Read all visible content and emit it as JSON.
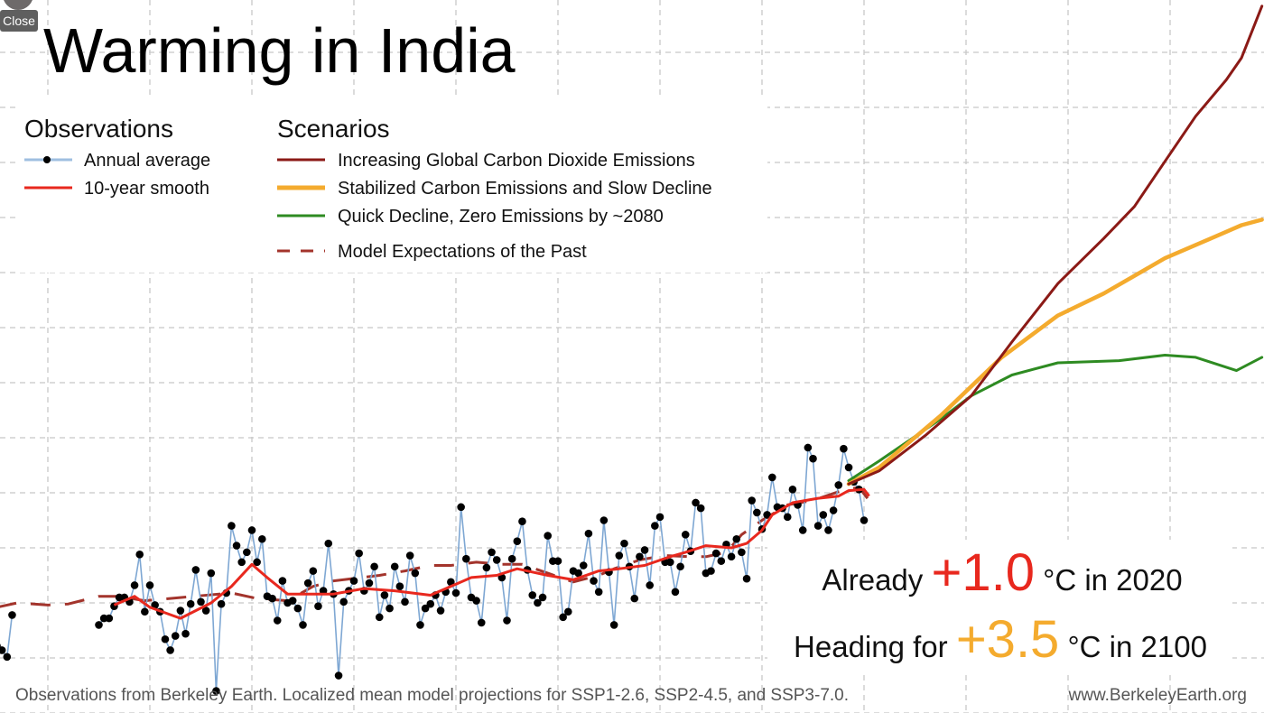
{
  "close_button": {
    "label": "Close"
  },
  "chart_data": {
    "type": "line",
    "title": "Warming in India",
    "xlabel": "",
    "ylabel": "",
    "xlim": [
      1850,
      2100
    ],
    "ylim": [
      -1.0,
      5.5
    ],
    "grid": true,
    "x_grid_step": 20,
    "y_grid_step": 0.5,
    "legend": {
      "placement": "top-left",
      "observations_title": "Observations",
      "scenarios_title": "Scenarios",
      "items": {
        "annual": "Annual average",
        "smooth": "10-year smooth",
        "ssp370": "Increasing Global Carbon Dioxide Emissions",
        "ssp245": "Stabilized Carbon Emissions and Slow Decline",
        "ssp126": "Quick Decline, Zero Emissions by ~2080",
        "past": "Model Expectations of the Past"
      }
    },
    "colors": {
      "annual_line": "#7ea7d3",
      "annual_marker": "#000000",
      "smooth": "#e8281e",
      "ssp370": "#8b1a16",
      "ssp245": "#f4ab2e",
      "ssp126": "#2e8b22",
      "past": "#a3342c",
      "annotation_now": "#e8281e",
      "annotation_future": "#f4ab2e"
    },
    "series": [
      {
        "id": "annual",
        "name": "Annual average",
        "segments": [
          {
            "x": [
              1850,
              1851,
              1852,
              1853
            ],
            "y": [
              -0.39,
              -0.43,
              -0.49,
              -0.11
            ]
          },
          {
            "x": [
              1870,
              1871,
              1872,
              1873,
              1874,
              1875,
              1876,
              1877,
              1878,
              1879,
              1880,
              1881,
              1882,
              1883,
              1884,
              1885,
              1886,
              1887,
              1888,
              1889,
              1890,
              1891,
              1892,
              1893,
              1894,
              1895,
              1896,
              1897,
              1898,
              1899,
              1900,
              1901,
              1902,
              1903,
              1904,
              1905,
              1906,
              1907,
              1908,
              1909,
              1910,
              1911,
              1912,
              1913,
              1914,
              1915,
              1916,
              1917,
              1918,
              1919,
              1920,
              1921,
              1922,
              1923,
              1924,
              1925,
              1926,
              1927,
              1928,
              1929,
              1930,
              1931,
              1932,
              1933,
              1934,
              1935,
              1936,
              1937,
              1938,
              1939,
              1940,
              1941,
              1942,
              1943,
              1944,
              1945,
              1946,
              1947,
              1948,
              1949,
              1950,
              1951,
              1952,
              1953,
              1954,
              1955,
              1956,
              1957,
              1958,
              1959,
              1960,
              1961,
              1962,
              1963,
              1964,
              1965,
              1966,
              1967,
              1968,
              1969,
              1970,
              1971,
              1972,
              1973,
              1974,
              1975,
              1976,
              1977,
              1978,
              1979,
              1980,
              1981,
              1982,
              1983,
              1984,
              1985,
              1986,
              1987,
              1988,
              1989,
              1990,
              1991,
              1992,
              1993,
              1994,
              1995,
              1996,
              1997,
              1998,
              1999,
              2000,
              2001,
              2002,
              2003,
              2004,
              2005,
              2006,
              2007,
              2008,
              2009,
              2010,
              2011,
              2012,
              2013,
              2014,
              2015,
              2016,
              2017,
              2018,
              2019,
              2020
            ],
            "y": [
              -0.2,
              -0.14,
              -0.14,
              -0.03,
              0.05,
              0.05,
              0.01,
              0.16,
              0.44,
              -0.08,
              0.16,
              -0.02,
              -0.08,
              -0.33,
              -0.43,
              -0.3,
              -0.07,
              -0.28,
              -0.01,
              0.3,
              0.01,
              -0.07,
              0.27,
              -0.8,
              -0.01,
              0.09,
              0.7,
              0.52,
              0.37,
              0.46,
              0.66,
              0.37,
              0.58,
              0.06,
              0.04,
              -0.16,
              0.2,
              0.0,
              0.02,
              -0.05,
              -0.2,
              0.18,
              0.29,
              -0.03,
              0.11,
              0.54,
              0.08,
              -0.66,
              0.01,
              0.11,
              0.2,
              0.45,
              0.11,
              0.18,
              0.33,
              -0.13,
              0.07,
              -0.05,
              0.33,
              0.15,
              0.01,
              0.43,
              0.27,
              -0.2,
              -0.05,
              -0.01,
              0.07,
              -0.07,
              0.1,
              0.19,
              0.09,
              0.87,
              0.4,
              0.05,
              0.02,
              -0.18,
              0.32,
              0.46,
              0.39,
              0.23,
              -0.16,
              0.4,
              0.56,
              0.74,
              0.3,
              0.07,
              0.0,
              0.05,
              0.61,
              0.38,
              0.38,
              -0.13,
              -0.08,
              0.29,
              0.27,
              0.34,
              0.63,
              0.2,
              0.1,
              0.75,
              0.28,
              -0.2,
              0.43,
              0.54,
              0.33,
              0.04,
              0.42,
              0.48,
              0.16,
              0.7,
              0.78,
              0.37,
              0.37,
              0.1,
              0.33,
              0.62,
              0.47,
              0.91,
              0.86,
              0.27,
              0.29,
              0.45,
              0.38,
              0.53,
              0.42,
              0.58,
              0.46,
              0.22,
              0.93,
              0.82,
              0.67,
              0.8,
              1.14,
              0.87,
              0.86,
              0.78,
              1.03,
              0.89,
              0.66,
              1.41,
              1.31,
              0.7,
              0.8,
              0.66,
              0.84,
              1.07,
              1.4,
              1.23,
              1.1,
              1.03,
              0.75
            ]
          }
        ]
      },
      {
        "id": "smooth",
        "name": "10-year smooth",
        "x": [
          1873,
          1877,
          1880,
          1886,
          1892,
          1896,
          1900,
          1903,
          1907,
          1916,
          1922,
          1928,
          1935,
          1940,
          1943,
          1948,
          1952,
          1958,
          1963,
          1968,
          1972,
          1977,
          1982,
          1985,
          1989,
          1994,
          1997,
          2000,
          2002,
          2006,
          2011,
          2015,
          2017,
          2020,
          2021
        ],
        "y": [
          -0.02,
          0.06,
          -0.04,
          -0.14,
          0.0,
          0.15,
          0.35,
          0.23,
          0.08,
          0.08,
          0.13,
          0.11,
          0.07,
          0.17,
          0.23,
          0.25,
          0.31,
          0.25,
          0.21,
          0.29,
          0.31,
          0.34,
          0.42,
          0.46,
          0.52,
          0.5,
          0.54,
          0.66,
          0.8,
          0.91,
          0.95,
          0.97,
          1.02,
          1.03,
          0.97
        ]
      },
      {
        "id": "past",
        "name": "Model Expectations of the Past",
        "x": [
          1850,
          1854,
          1860,
          1864,
          1870,
          1874,
          1879,
          1896,
          1901,
          1907,
          1912,
          1916,
          1925,
          1930,
          1935,
          1939,
          1944,
          1949,
          1953,
          1958,
          1963,
          1968,
          1971,
          1976,
          1981,
          1986,
          1989,
          1993,
          1996,
          2000,
          2005,
          2010,
          2015,
          2019,
          2021
        ],
        "y": [
          -0.04,
          0.0,
          -0.02,
          -0.01,
          0.06,
          0.06,
          0.02,
          0.09,
          0.04,
          0.02,
          0.15,
          0.2,
          0.25,
          0.29,
          0.34,
          0.34,
          0.37,
          0.35,
          0.35,
          0.27,
          0.19,
          0.25,
          0.31,
          0.39,
          0.43,
          0.42,
          0.42,
          0.46,
          0.62,
          0.75,
          0.89,
          0.93,
          1.01,
          1.05,
          0.93
        ]
      },
      {
        "id": "ssp126",
        "name": "Quick Decline, Zero Emissions by ~2080",
        "x": [
          2017,
          2023,
          2035,
          2041,
          2049,
          2058,
          2070,
          2079,
          2085,
          2093,
          2098
        ],
        "y": [
          1.11,
          1.29,
          1.67,
          1.88,
          2.07,
          2.18,
          2.2,
          2.25,
          2.23,
          2.11,
          2.23
        ]
      },
      {
        "id": "ssp245",
        "name": "Stabilized Carbon Emissions and Slow Decline",
        "x": [
          2017,
          2023,
          2035,
          2047,
          2058,
          2067,
          2079,
          2088,
          2094,
          2098
        ],
        "y": [
          1.08,
          1.23,
          1.7,
          2.23,
          2.61,
          2.81,
          3.13,
          3.31,
          3.43,
          3.48
        ]
      },
      {
        "id": "ssp370",
        "name": "Increasing Global Carbon Dioxide Emissions",
        "x": [
          2017,
          2023,
          2032,
          2041,
          2049,
          2058,
          2067,
          2073,
          2079,
          2085,
          2091,
          2094,
          2098
        ],
        "y": [
          1.08,
          1.2,
          1.52,
          1.88,
          2.37,
          2.9,
          3.31,
          3.6,
          4.01,
          4.42,
          4.75,
          4.95,
          5.42
        ]
      }
    ],
    "annotations": {
      "now": {
        "prefix": "Already",
        "value": "+1.0",
        "suffix": "°C in 2020"
      },
      "future": {
        "prefix": "Heading for",
        "value": "+3.5",
        "suffix": "°C in 2100"
      }
    },
    "footer": {
      "source": "Observations from Berkeley Earth. Localized mean model projections for SSP1-2.6, SSP2-4.5, and SSP3-7.0.",
      "website": "www.BerkeleyEarth.org"
    }
  }
}
